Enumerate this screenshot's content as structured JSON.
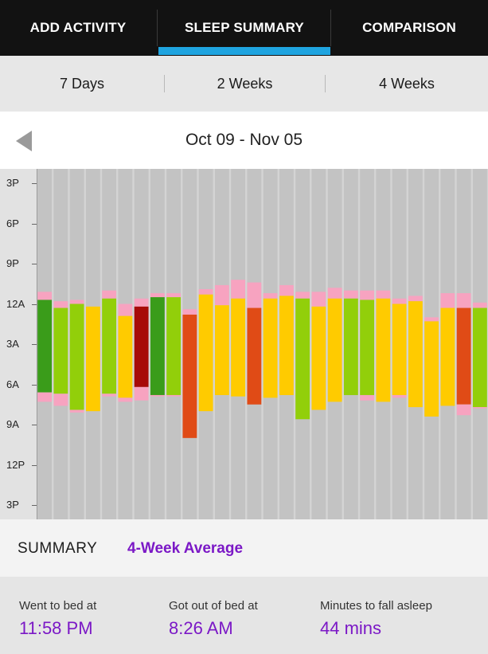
{
  "tabs": [
    {
      "label": "ADD ACTIVITY"
    },
    {
      "label": "SLEEP SUMMARY",
      "selected": true
    },
    {
      "label": "COMPARISON"
    }
  ],
  "range_options": [
    {
      "label": "7 Days"
    },
    {
      "label": "2 Weeks"
    },
    {
      "label": "4 Weeks",
      "selected": true
    }
  ],
  "date_nav": {
    "label": "Oct 09 - Nov 05",
    "prev_icon": "left-triangle-icon"
  },
  "chart_data": {
    "type": "bar",
    "y_ticks": [
      "3P",
      "6P",
      "9P",
      "12A",
      "3A",
      "6A",
      "9A",
      "12P",
      "3P"
    ],
    "y_range_hours": [
      15,
      39
    ],
    "colors": {
      "in_bed": "#f7a3c0",
      "level_dark_green": "#3a9c1a",
      "level_light_green": "#92cf0a",
      "level_yellow": "#ffcb00",
      "level_orange": "#e04b16",
      "level_dark_red": "#a70a08",
      "background_bar": "#c3c3c3"
    },
    "nights": [
      {
        "bed": 23.1,
        "sleep_start": 23.7,
        "sleep_end": 30.6,
        "wake": 31.3,
        "level": "level_dark_green"
      },
      {
        "bed": 23.8,
        "sleep_start": 24.3,
        "sleep_end": 30.7,
        "wake": 31.6,
        "level": "level_light_green"
      },
      {
        "bed": 23.7,
        "sleep_start": 24.0,
        "sleep_end": 31.9,
        "wake": 32.1,
        "level": "level_light_green"
      },
      {
        "bed": 24.2,
        "sleep_start": 24.2,
        "sleep_end": 32.0,
        "wake": 32.0,
        "level": "level_yellow"
      },
      {
        "bed": 23.0,
        "sleep_start": 23.6,
        "sleep_end": 30.7,
        "wake": 30.9,
        "level": "level_light_green"
      },
      {
        "bed": 24.0,
        "sleep_start": 24.9,
        "sleep_end": 31.0,
        "wake": 31.3,
        "level": "level_yellow"
      },
      {
        "bed": 23.6,
        "sleep_start": 24.2,
        "sleep_end": 30.2,
        "wake": 31.2,
        "level": "level_dark_red"
      },
      {
        "bed": 23.2,
        "sleep_start": 23.5,
        "sleep_end": 30.8,
        "wake": 30.9,
        "level": "level_dark_green"
      },
      {
        "bed": 23.2,
        "sleep_start": 23.5,
        "sleep_end": 30.8,
        "wake": 30.9,
        "level": "level_light_green"
      },
      {
        "bed": 24.4,
        "sleep_start": 24.8,
        "sleep_end": 34.0,
        "wake": 34.0,
        "level": "level_orange"
      },
      {
        "bed": 22.9,
        "sleep_start": 23.3,
        "sleep_end": 32.0,
        "wake": 32.0,
        "level": "level_yellow"
      },
      {
        "bed": 22.6,
        "sleep_start": 24.1,
        "sleep_end": 30.8,
        "wake": 30.8,
        "level": "level_yellow"
      },
      {
        "bed": 22.2,
        "sleep_start": 23.6,
        "sleep_end": 30.9,
        "wake": 30.9,
        "level": "level_yellow"
      },
      {
        "bed": 22.4,
        "sleep_start": 24.3,
        "sleep_end": 31.5,
        "wake": 31.5,
        "level": "level_orange"
      },
      {
        "bed": 23.2,
        "sleep_start": 23.6,
        "sleep_end": 31.0,
        "wake": 31.0,
        "level": "level_yellow"
      },
      {
        "bed": 22.6,
        "sleep_start": 23.4,
        "sleep_end": 30.8,
        "wake": 30.8,
        "level": "level_yellow"
      },
      {
        "bed": 23.1,
        "sleep_start": 23.6,
        "sleep_end": 32.6,
        "wake": 32.6,
        "level": "level_light_green"
      },
      {
        "bed": 23.1,
        "sleep_start": 24.2,
        "sleep_end": 31.9,
        "wake": 31.9,
        "level": "level_yellow"
      },
      {
        "bed": 22.8,
        "sleep_start": 23.6,
        "sleep_end": 31.3,
        "wake": 31.3,
        "level": "level_yellow"
      },
      {
        "bed": 23.0,
        "sleep_start": 23.6,
        "sleep_end": 30.8,
        "wake": 30.8,
        "level": "level_light_green"
      },
      {
        "bed": 23.0,
        "sleep_start": 23.7,
        "sleep_end": 30.8,
        "wake": 31.2,
        "level": "level_light_green"
      },
      {
        "bed": 23.0,
        "sleep_start": 23.6,
        "sleep_end": 31.3,
        "wake": 31.3,
        "level": "level_yellow"
      },
      {
        "bed": 23.6,
        "sleep_start": 24.0,
        "sleep_end": 30.8,
        "wake": 31.0,
        "level": "level_yellow"
      },
      {
        "bed": 23.4,
        "sleep_start": 23.8,
        "sleep_end": 31.7,
        "wake": 31.7,
        "level": "level_yellow"
      },
      {
        "bed": 25.0,
        "sleep_start": 25.3,
        "sleep_end": 32.4,
        "wake": 32.4,
        "level": "level_yellow"
      },
      {
        "bed": 23.2,
        "sleep_start": 24.3,
        "sleep_end": 31.6,
        "wake": 31.6,
        "level": "level_yellow"
      },
      {
        "bed": 23.2,
        "sleep_start": 24.3,
        "sleep_end": 31.5,
        "wake": 32.3,
        "level": "level_orange"
      },
      {
        "bed": 23.9,
        "sleep_start": 24.3,
        "sleep_end": 31.7,
        "wake": 31.8,
        "level": "level_light_green"
      }
    ]
  },
  "summary": {
    "title": "SUMMARY",
    "subtitle": "4-Week Average"
  },
  "stats": [
    {
      "label": "Went to bed at",
      "value": "11:58 PM"
    },
    {
      "label": "Got out of bed at",
      "value": "8:26 AM"
    },
    {
      "label": "Minutes to fall asleep",
      "value": "44 mins"
    }
  ]
}
